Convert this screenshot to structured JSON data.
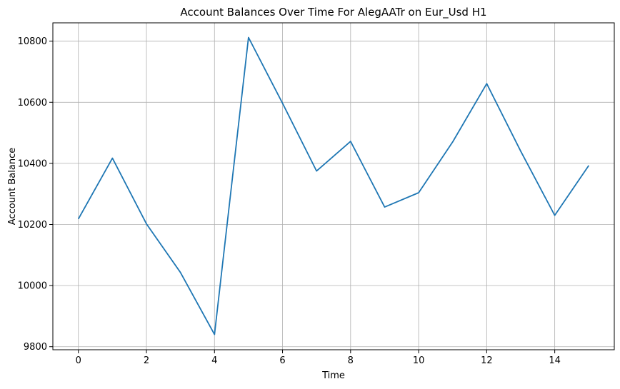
{
  "chart_data": {
    "type": "line",
    "title": "Account Balances Over Time For AlegAATr on Eur_Usd H1",
    "xlabel": "Time",
    "ylabel": "Account Balance",
    "xlim": [
      -0.75,
      15.75
    ],
    "ylim": [
      9790,
      10860
    ],
    "xticks": [
      0,
      2,
      4,
      6,
      8,
      10,
      12,
      14
    ],
    "yticks": [
      9800,
      10000,
      10200,
      10400,
      10600,
      10800
    ],
    "grid": true,
    "series_color": "#1f77b4",
    "x": [
      0,
      1,
      2,
      3,
      4,
      5,
      6,
      7,
      8,
      9,
      10,
      11,
      12,
      13,
      14,
      15
    ],
    "values": [
      10218,
      10417,
      10202,
      10043,
      9840,
      10812,
      10597,
      10375,
      10472,
      10257,
      10304,
      10470,
      10661,
      10440,
      10230,
      10393
    ]
  }
}
